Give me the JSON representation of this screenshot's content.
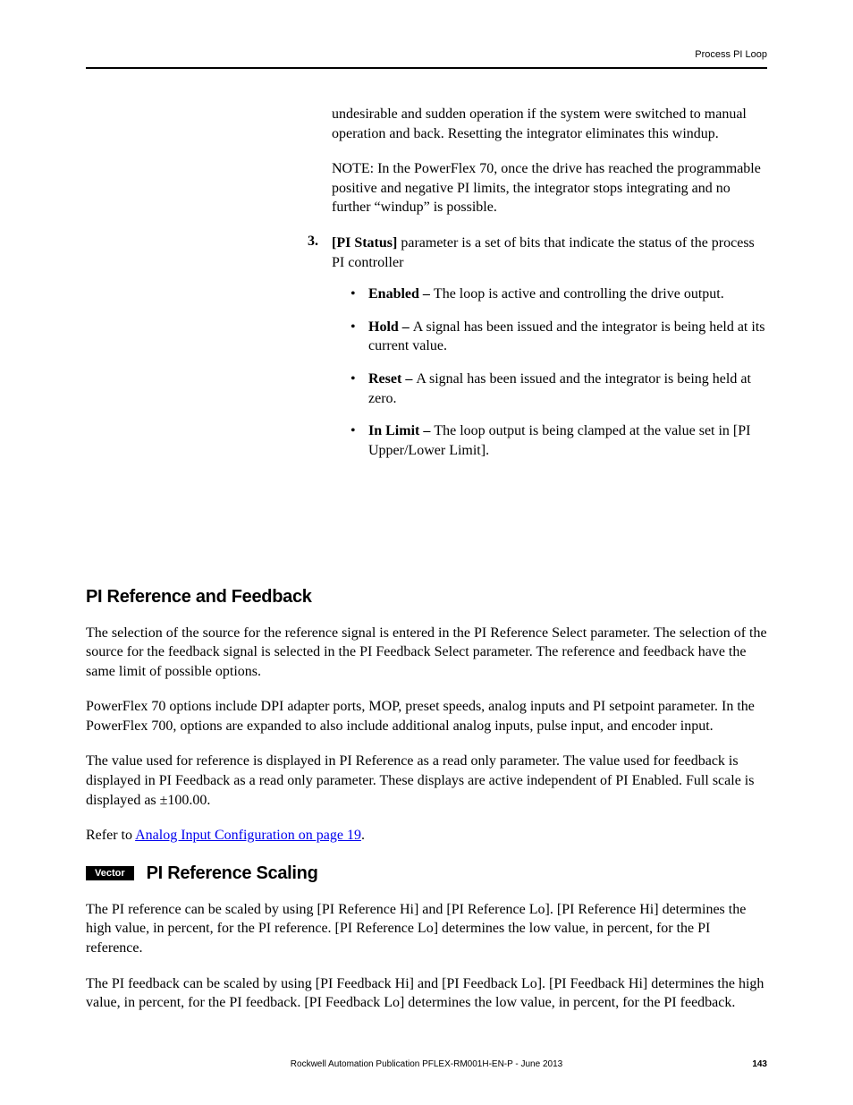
{
  "header": {
    "section_label": "Process PI Loop"
  },
  "body": {
    "windup_para": "undesirable and sudden operation if the system were switched to manual operation and back. Resetting the integrator eliminates this windup.",
    "note_para": "NOTE: In the PowerFlex 70, once the drive has reached the programmable positive and negative PI limits, the integrator stops integrating and no further “windup” is possible.",
    "numbered": {
      "num": "3.",
      "bold": "[PI Status]",
      "rest": " parameter is a set of bits that indicate the status of the process PI controller"
    },
    "bullets": [
      {
        "bold": "Enabled – ",
        "rest": "The loop is active and controlling the drive output."
      },
      {
        "bold": "Hold – ",
        "rest": "A signal has been issued and the integrator is being held at its current value."
      },
      {
        "bold": "Reset – ",
        "rest": "A signal has been issued and the integrator is being held at zero."
      },
      {
        "bold": "In Limit – ",
        "rest": "The loop output is being clamped at the value set in [PI Upper/Lower Limit]."
      }
    ],
    "h2_pi_ref_fb": "PI Reference and Feedback",
    "pi_ref_fb_p1": "The selection of the source for the reference signal is entered in the PI Reference Select parameter. The selection of the source for the feedback signal is selected in the PI Feedback Select parameter. The reference and feedback have the same limit of possible options.",
    "pi_ref_fb_p2": "PowerFlex 70 options include DPI adapter ports, MOP, preset speeds, analog inputs and PI setpoint parameter. In the PowerFlex 700, options are expanded to also include additional analog inputs, pulse input, and encoder input.",
    "pi_ref_fb_p3": "The value used for reference is displayed in PI Reference as a read only parameter. The value used for feedback is displayed in PI Feedback as a read only parameter. These displays are active independent of PI Enabled. Full scale is displayed as ±100.00.",
    "refer_prefix": "Refer to ",
    "refer_link": "Analog Input Configuration on page 19",
    "refer_suffix": ".",
    "vector_label": "Vector",
    "h3_pi_ref_scaling": "PI Reference Scaling",
    "scaling_p1": "The PI reference can be scaled by using [PI Reference Hi] and [PI Reference Lo]. [PI Reference Hi] determines the high value, in percent, for the PI reference. [PI Reference Lo] determines the low value, in percent, for the PI reference.",
    "scaling_p2": "The PI feedback can be scaled by using [PI Feedback Hi] and [PI Feedback Lo]. [PI Feedback Hi] determines the high value, in percent, for the PI feedback. [PI Feedback Lo] determines the low value, in percent, for the PI feedback."
  },
  "footer": {
    "publication": "Rockwell Automation Publication PFLEX-RM001H-EN-P - June 2013",
    "page_number": "143"
  }
}
